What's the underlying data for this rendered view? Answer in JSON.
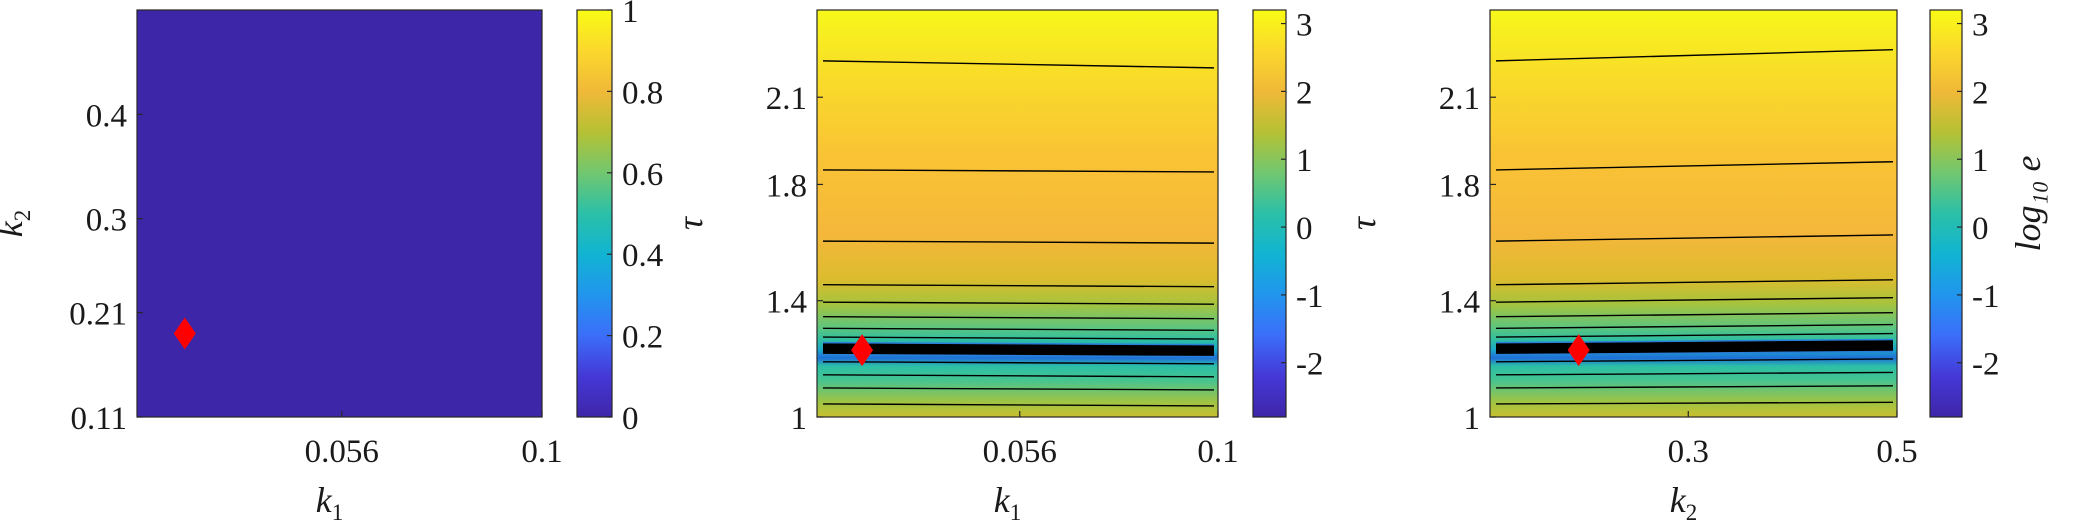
{
  "chart_data": [
    {
      "type": "heatmap",
      "xlabel": "k",
      "xlabel_sub": "1",
      "ylabel": "k",
      "ylabel_sub": "2",
      "xlim": [
        0.011,
        0.1
      ],
      "ylim": [
        0.11,
        0.5
      ],
      "x_ticks": [
        0.056,
        0.1
      ],
      "x_tick_labels": [
        "0.056",
        "0.1"
      ],
      "y_ticks": [
        0.11,
        0.21,
        0.3,
        0.4
      ],
      "y_tick_labels": [
        "0.11",
        "0.21",
        "0.3",
        "0.4"
      ],
      "z_description": "uniform field",
      "z_value": 0,
      "colorbar": {
        "range": [
          0,
          1
        ],
        "ticks": [
          0,
          0.2,
          0.4,
          0.6,
          0.8,
          1
        ],
        "tick_labels": [
          "0",
          "0.2",
          "0.4",
          "0.6",
          "0.8",
          "1"
        ],
        "label": ""
      },
      "markers": [
        {
          "x": 0.0215,
          "y": 0.19,
          "shape": "diamond",
          "color": "#ff0000"
        }
      ],
      "contour_levels_y": []
    },
    {
      "type": "heatmap",
      "xlabel": "k",
      "xlabel_sub": "1",
      "ylabel": "τ",
      "ylabel_sub": "",
      "xlim": [
        0.011,
        0.1
      ],
      "ylim": [
        1.0,
        2.4
      ],
      "x_ticks": [
        0.056,
        0.1
      ],
      "x_tick_labels": [
        "0.056",
        "0.1"
      ],
      "y_ticks": [
        1.0,
        1.4,
        1.8,
        2.1
      ],
      "y_tick_labels": [
        "1",
        "1.4",
        "1.8",
        "2.1"
      ],
      "colorbar": {
        "range": [
          -2.8,
          3.2
        ],
        "ticks": [
          -2,
          -1,
          0,
          1,
          2,
          3
        ],
        "tick_labels": [
          "-2",
          "-1",
          "0",
          "1",
          "2",
          "3"
        ],
        "label": ""
      },
      "markers": [
        {
          "x": 0.021,
          "y": 1.23,
          "shape": "diamond",
          "color": "#ff0000"
        }
      ],
      "contour_levels_y": [
        2.225,
        1.85,
        1.605,
        1.455,
        1.395,
        1.345,
        1.305,
        1.275,
        1.235,
        1.19,
        1.145,
        1.1,
        1.045
      ]
    },
    {
      "type": "heatmap",
      "xlabel": "k",
      "xlabel_sub": "2",
      "ylabel": "τ",
      "ylabel_sub": "",
      "xlim": [
        0.11,
        0.5
      ],
      "ylim": [
        1.0,
        2.4
      ],
      "x_ticks": [
        0.3,
        0.5
      ],
      "x_tick_labels": [
        "0.3",
        "0.5"
      ],
      "y_ticks": [
        1.0,
        1.4,
        1.8,
        2.1
      ],
      "y_tick_labels": [
        "1",
        "1.4",
        "1.8",
        "2.1"
      ],
      "colorbar": {
        "range": [
          -2.8,
          3.2
        ],
        "ticks": [
          -2,
          -1,
          0,
          1,
          2,
          3
        ],
        "tick_labels": [
          "-2",
          "-1",
          "0",
          "1",
          "2",
          "3"
        ],
        "label": "log₁₀ e"
      },
      "markers": [
        {
          "x": 0.195,
          "y": 1.23,
          "shape": "diamond",
          "color": "#ff0000"
        }
      ],
      "contour_levels_y": [
        2.225,
        1.85,
        1.605,
        1.455,
        1.395,
        1.345,
        1.305,
        1.275,
        1.235,
        1.19,
        1.145,
        1.1,
        1.045
      ]
    }
  ],
  "colors": {
    "low": "#3e26a8",
    "high": "#f9fb15",
    "marker": "#ff0000",
    "contour": "#000000"
  }
}
